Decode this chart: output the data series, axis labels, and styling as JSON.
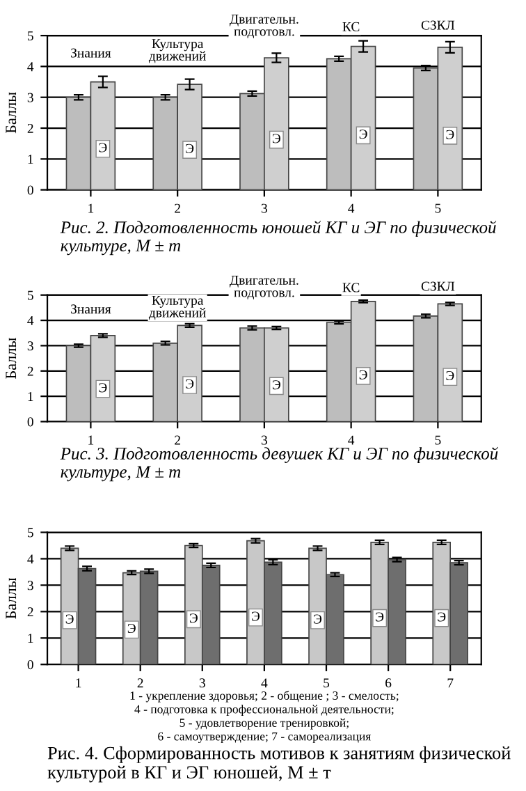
{
  "chart_data": [
    {
      "type": "bar",
      "title": "Рис. 2. Подготовленность юношей КГ и ЭГ по физической культуре, M ± m",
      "ylabel": "Баллы",
      "categories": [
        "1",
        "2",
        "3",
        "4",
        "5"
      ],
      "ylim": [
        0,
        5
      ],
      "yticks": [
        0,
        1,
        2,
        3,
        4,
        5
      ],
      "grid": "y",
      "series": [
        {
          "color": "#bdbdbd",
          "values": [
            3.0,
            3.0,
            3.12,
            4.25,
            3.95
          ],
          "errors": [
            0.08,
            0.08,
            0.08,
            0.08,
            0.08
          ]
        },
        {
          "name": "Э",
          "color": "#cfcfcf",
          "values": [
            3.5,
            3.42,
            4.28,
            4.65,
            4.62
          ],
          "errors": [
            0.18,
            0.17,
            0.15,
            0.18,
            0.18
          ]
        }
      ],
      "annotations": [
        "Знания",
        "Культура\nдвижений",
        "Двигательн.\nподготовл.",
        "КС",
        "СЗКЛ"
      ]
    },
    {
      "type": "bar",
      "title": "Рис. 3. Подготовленность девушек КГ и ЭГ по физической культуре, M ± m",
      "ylabel": "Баллы",
      "categories": [
        "1",
        "2",
        "3",
        "4",
        "5"
      ],
      "ylim": [
        0,
        5
      ],
      "yticks": [
        0,
        1,
        2,
        3,
        4,
        5
      ],
      "grid": "y",
      "series": [
        {
          "color": "#bdbdbd",
          "values": [
            3.0,
            3.1,
            3.7,
            3.92,
            4.17
          ],
          "errors": [
            0.06,
            0.07,
            0.07,
            0.06,
            0.07
          ]
        },
        {
          "name": "Э",
          "color": "#cfcfcf",
          "values": [
            3.4,
            3.8,
            3.7,
            4.75,
            4.65
          ],
          "errors": [
            0.07,
            0.07,
            0.06,
            0.05,
            0.06
          ]
        }
      ],
      "annotations": [
        "Знания",
        "Культура\nдвижений",
        "Двигательн.\nподготовл.",
        "КС",
        "СЗКЛ"
      ]
    },
    {
      "type": "bar",
      "title": "Рис. 4. Сформированность мотивов к занятиям физической культурой в КГ и ЭГ юношей, M ± т",
      "ylabel": "Баллы",
      "categories": [
        "1",
        "2",
        "3",
        "4",
        "5",
        "6",
        "7"
      ],
      "ylim": [
        0,
        5
      ],
      "yticks": [
        0,
        1,
        2,
        3,
        4,
        5
      ],
      "grid": "y",
      "series": [
        {
          "name": "Э",
          "color": "#c8c8c8",
          "values": [
            4.4,
            3.47,
            4.5,
            4.68,
            4.4,
            4.62,
            4.62
          ],
          "errors": [
            0.08,
            0.07,
            0.07,
            0.08,
            0.08,
            0.08,
            0.08
          ]
        },
        {
          "color": "#6e6e6e",
          "values": [
            3.63,
            3.53,
            3.75,
            3.87,
            3.4,
            3.97,
            3.85
          ],
          "errors": [
            0.08,
            0.08,
            0.08,
            0.09,
            0.07,
            0.08,
            0.08
          ]
        }
      ],
      "annotations": [
        "1 - укрепление здоровья; 2 - общение ; 3 - смелость;\n4 - подготовка к профессиональной деятельности;\n5 - удовлетворение тренировкой;\n6 - самоутверждение; 7 - самореализация"
      ]
    }
  ]
}
